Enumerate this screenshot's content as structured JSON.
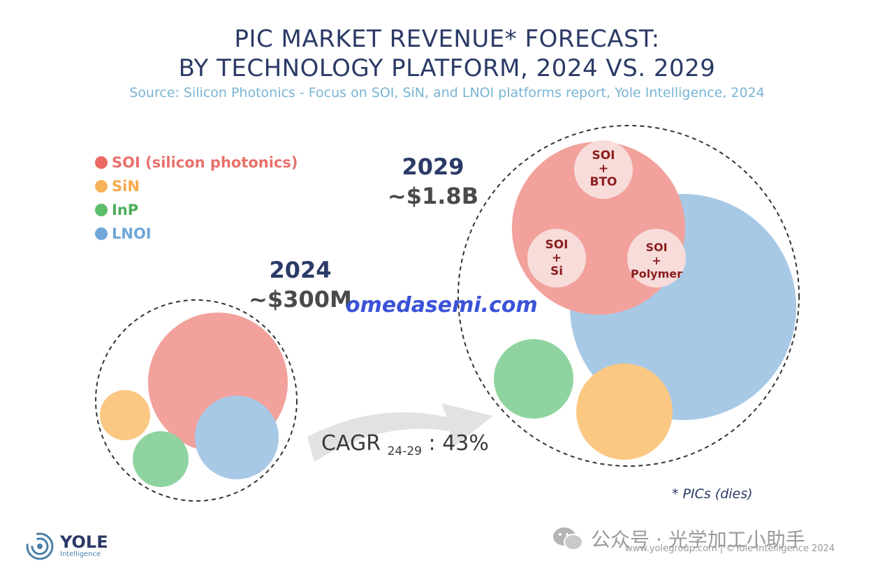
{
  "chart_data": {
    "type": "bubble",
    "title_line1": "PIC MARKET REVENUE* FORECAST:",
    "title_line2": "BY TECHNOLOGY PLATFORM, 2024 VS. 2029",
    "subtitle": "Source: Silicon Photonics  - Focus on SOI, SiN, and LNOI platforms  report, Yole Intelligence, 2024",
    "legend": [
      {
        "name": "SOI (silicon photonics)",
        "color": "#ef9a95",
        "dot_color": "#ec6a64"
      },
      {
        "name": "SiN",
        "color": "#f7b35a",
        "dot_color": "#f7b35a"
      },
      {
        "name": "InP",
        "color": "#5cbf6c",
        "dot_color": "#5cbf6c"
      },
      {
        "name": "LNOI",
        "color": "#6fa7d8",
        "dot_color": "#6fa7d8"
      }
    ],
    "groups": [
      {
        "year": "2024",
        "total": "~$300M"
      },
      {
        "year": "2029",
        "total": "~$1.8B",
        "soi_subsegments": [
          {
            "line1": "SOI",
            "line2": "+",
            "line3": "BTO"
          },
          {
            "line1": "SOI",
            "line2": "+",
            "line3": "Si"
          },
          {
            "line1": "SOI",
            "line2": "+",
            "line3": "Polymer"
          }
        ]
      }
    ],
    "cagr": {
      "label": "CAGR",
      "period": "24-29",
      "value": ": 43%"
    },
    "footnote": "* PICs (dies)"
  },
  "colors": {
    "soi": "#f2a19c",
    "sin": "#fbc883",
    "inp": "#8fd4a0",
    "lnoi": "#a8c9e6",
    "sub_circle": "#f7dcda",
    "dashed": "#333333",
    "arrow": "#e2e2e2"
  },
  "watermark": "omedasemi.com",
  "logo": {
    "name": "YOLE",
    "sub": "Intelligence"
  },
  "wechat_text": "公众号 · 光学加工小助手",
  "credit": "www.yolegroup.com | ©Yole Intelligence 2024",
  "icons": {
    "logo": "yole-swirl-icon",
    "wechat": "wechat-icon"
  }
}
